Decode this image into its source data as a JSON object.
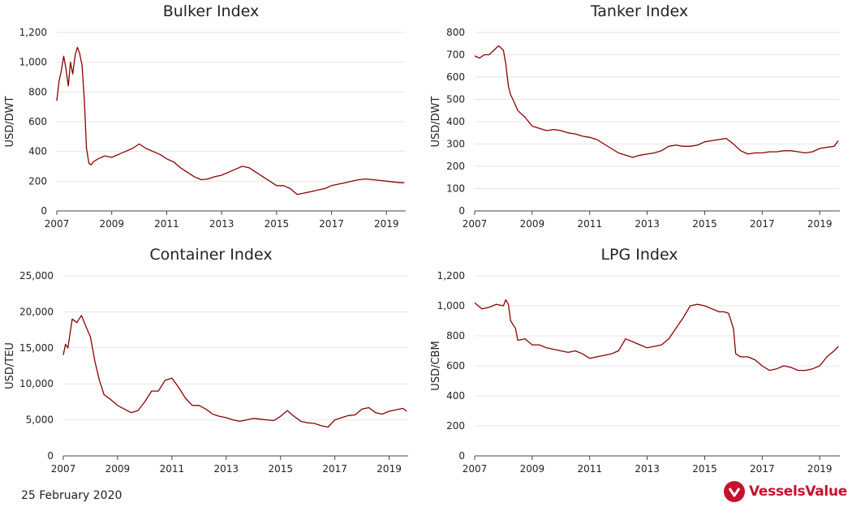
{
  "footer": {
    "date": "25 February 2020",
    "brand": "VesselsValue"
  },
  "colors": {
    "line": "#8b0000",
    "grid": "#e6e6e6",
    "brand": "#c8102e"
  },
  "chart_data": [
    {
      "type": "line",
      "title": "Bulker Index",
      "xlabel": "",
      "ylabel": "USD/DWT",
      "xlim": [
        2007,
        2019.7
      ],
      "ylim": [
        0,
        1200
      ],
      "xticks": [
        2007,
        2009,
        2011,
        2013,
        2015,
        2017,
        2019
      ],
      "xtick_labels": [
        "2007",
        "2009",
        "2011",
        "2013",
        "2015",
        "2017",
        "2019"
      ],
      "yticks": [
        0,
        200,
        400,
        600,
        800,
        1000,
        1200
      ],
      "ytick_labels": [
        "0",
        "200",
        "400",
        "600",
        "800",
        "1,000",
        "1,200"
      ],
      "grid": true,
      "series": [
        {
          "x": [
            2007.0,
            2007.08,
            2007.15,
            2007.25,
            2007.33,
            2007.42,
            2007.5,
            2007.58,
            2007.67,
            2007.75,
            2007.83,
            2007.92,
            2008.0,
            2008.08,
            2008.17,
            2008.25,
            2008.33,
            2008.5,
            2008.75,
            2009.0,
            2009.25,
            2009.5,
            2009.75,
            2010.0,
            2010.25,
            2010.5,
            2010.75,
            2011.0,
            2011.25,
            2011.5,
            2011.75,
            2012.0,
            2012.25,
            2012.5,
            2012.75,
            2013.0,
            2013.25,
            2013.5,
            2013.75,
            2014.0,
            2014.25,
            2014.5,
            2014.75,
            2015.0,
            2015.25,
            2015.5,
            2015.75,
            2016.0,
            2016.25,
            2016.5,
            2016.75,
            2017.0,
            2017.25,
            2017.5,
            2017.75,
            2018.0,
            2018.25,
            2018.5,
            2018.75,
            2019.0,
            2019.25,
            2019.5,
            2019.65
          ],
          "y": [
            740,
            870,
            930,
            1040,
            960,
            840,
            1000,
            920,
            1050,
            1100,
            1060,
            980,
            750,
            420,
            320,
            310,
            330,
            350,
            370,
            360,
            380,
            400,
            420,
            450,
            420,
            400,
            380,
            350,
            330,
            290,
            260,
            230,
            210,
            215,
            230,
            240,
            260,
            280,
            300,
            290,
            260,
            230,
            200,
            170,
            170,
            150,
            110,
            120,
            130,
            140,
            150,
            170,
            180,
            190,
            200,
            210,
            215,
            210,
            205,
            200,
            195,
            190,
            190
          ]
        }
      ]
    },
    {
      "type": "line",
      "title": "Tanker Index",
      "xlabel": "",
      "ylabel": "USD/DWT",
      "xlim": [
        2007,
        2019.7
      ],
      "ylim": [
        0,
        800
      ],
      "xticks": [
        2007,
        2009,
        2011,
        2013,
        2015,
        2017,
        2019
      ],
      "xtick_labels": [
        "2007",
        "2009",
        "2011",
        "2013",
        "2015",
        "2017",
        "2019"
      ],
      "yticks": [
        0,
        100,
        200,
        300,
        400,
        500,
        600,
        700,
        800
      ],
      "ytick_labels": [
        "0",
        "100",
        "200",
        "300",
        "400",
        "500",
        "600",
        "700",
        "800"
      ],
      "grid": true,
      "series": [
        {
          "x": [
            2007.0,
            2007.17,
            2007.33,
            2007.5,
            2007.67,
            2007.83,
            2007.92,
            2008.0,
            2008.08,
            2008.17,
            2008.25,
            2008.33,
            2008.5,
            2008.75,
            2009.0,
            2009.25,
            2009.5,
            2009.75,
            2010.0,
            2010.25,
            2010.5,
            2010.75,
            2011.0,
            2011.25,
            2011.5,
            2011.75,
            2012.0,
            2012.25,
            2012.5,
            2012.75,
            2013.0,
            2013.25,
            2013.5,
            2013.75,
            2014.0,
            2014.25,
            2014.5,
            2014.75,
            2015.0,
            2015.25,
            2015.5,
            2015.75,
            2016.0,
            2016.25,
            2016.5,
            2016.75,
            2017.0,
            2017.25,
            2017.5,
            2017.75,
            2018.0,
            2018.25,
            2018.5,
            2018.75,
            2019.0,
            2019.25,
            2019.5,
            2019.65
          ],
          "y": [
            695,
            685,
            700,
            700,
            720,
            740,
            730,
            720,
            660,
            560,
            520,
            500,
            450,
            420,
            380,
            370,
            360,
            365,
            360,
            350,
            345,
            335,
            330,
            320,
            300,
            280,
            260,
            250,
            240,
            250,
            255,
            260,
            270,
            290,
            295,
            290,
            290,
            295,
            310,
            315,
            320,
            325,
            300,
            270,
            255,
            260,
            260,
            265,
            265,
            270,
            270,
            265,
            260,
            265,
            280,
            285,
            290,
            315
          ]
        }
      ]
    },
    {
      "type": "line",
      "title": "Container Index",
      "xlabel": "",
      "ylabel": "USD/TEU",
      "xlim": [
        2007,
        2019.7
      ],
      "ylim": [
        0,
        25000
      ],
      "xticks": [
        2007,
        2009,
        2011,
        2013,
        2015,
        2017,
        2019
      ],
      "xtick_labels": [
        "2007",
        "2009",
        "2011",
        "2013",
        "2015",
        "2017",
        "2019"
      ],
      "yticks": [
        0,
        5000,
        10000,
        15000,
        20000,
        25000
      ],
      "ytick_labels": [
        "0",
        "5,000",
        "10,000",
        "15,000",
        "20,000",
        "25,000"
      ],
      "grid": true,
      "series": [
        {
          "x": [
            2007.0,
            2007.08,
            2007.17,
            2007.33,
            2007.5,
            2007.67,
            2007.83,
            2008.0,
            2008.17,
            2008.33,
            2008.5,
            2008.75,
            2009.0,
            2009.25,
            2009.5,
            2009.75,
            2010.0,
            2010.25,
            2010.5,
            2010.75,
            2011.0,
            2011.25,
            2011.5,
            2011.75,
            2012.0,
            2012.25,
            2012.5,
            2012.75,
            2013.0,
            2013.25,
            2013.5,
            2013.75,
            2014.0,
            2014.25,
            2014.5,
            2014.75,
            2015.0,
            2015.25,
            2015.5,
            2015.75,
            2016.0,
            2016.25,
            2016.5,
            2016.75,
            2017.0,
            2017.25,
            2017.5,
            2017.75,
            2018.0,
            2018.25,
            2018.5,
            2018.75,
            2019.0,
            2019.25,
            2019.5,
            2019.65
          ],
          "y": [
            14000,
            15500,
            15000,
            19000,
            18500,
            19500,
            18000,
            16500,
            13000,
            10500,
            8500,
            7800,
            7000,
            6500,
            6000,
            6300,
            7500,
            9000,
            9000,
            10500,
            10800,
            9500,
            8000,
            7000,
            7000,
            6500,
            5800,
            5500,
            5300,
            5000,
            4800,
            5000,
            5200,
            5100,
            5000,
            4900,
            5500,
            6300,
            5500,
            4800,
            4600,
            4500,
            4200,
            4000,
            5000,
            5300,
            5600,
            5700,
            6500,
            6700,
            6000,
            5800,
            6200,
            6400,
            6600,
            6200
          ]
        }
      ]
    },
    {
      "type": "line",
      "title": "LPG Index",
      "xlabel": "",
      "ylabel": "USD/CBM",
      "xlim": [
        2007,
        2019.7
      ],
      "ylim": [
        0,
        1200
      ],
      "xticks": [
        2007,
        2009,
        2011,
        2013,
        2015,
        2017,
        2019
      ],
      "xtick_labels": [
        "2007",
        "2009",
        "2011",
        "2013",
        "2015",
        "2017",
        "2019"
      ],
      "yticks": [
        0,
        200,
        400,
        600,
        800,
        1000,
        1200
      ],
      "ytick_labels": [
        "0",
        "200",
        "400",
        "600",
        "800",
        "1,000",
        "1,200"
      ],
      "grid": true,
      "series": [
        {
          "x": [
            2007.0,
            2007.25,
            2007.5,
            2007.75,
            2008.0,
            2008.08,
            2008.17,
            2008.25,
            2008.42,
            2008.5,
            2008.75,
            2009.0,
            2009.25,
            2009.5,
            2009.75,
            2010.0,
            2010.25,
            2010.5,
            2010.75,
            2011.0,
            2011.25,
            2011.5,
            2011.75,
            2012.0,
            2012.25,
            2012.5,
            2012.75,
            2013.0,
            2013.25,
            2013.5,
            2013.75,
            2014.0,
            2014.25,
            2014.5,
            2014.75,
            2015.0,
            2015.25,
            2015.5,
            2015.67,
            2015.83,
            2016.0,
            2016.08,
            2016.25,
            2016.5,
            2016.75,
            2017.0,
            2017.25,
            2017.5,
            2017.75,
            2018.0,
            2018.25,
            2018.5,
            2018.75,
            2019.0,
            2019.25,
            2019.5,
            2019.65
          ],
          "y": [
            1020,
            980,
            990,
            1010,
            1000,
            1040,
            1010,
            900,
            850,
            770,
            780,
            740,
            740,
            720,
            710,
            700,
            690,
            700,
            680,
            650,
            660,
            670,
            680,
            700,
            780,
            760,
            740,
            720,
            730,
            740,
            780,
            850,
            920,
            1000,
            1010,
            1000,
            980,
            960,
            960,
            950,
            850,
            680,
            660,
            660,
            640,
            600,
            570,
            580,
            600,
            590,
            570,
            570,
            580,
            600,
            660,
            700,
            730
          ]
        }
      ]
    }
  ]
}
